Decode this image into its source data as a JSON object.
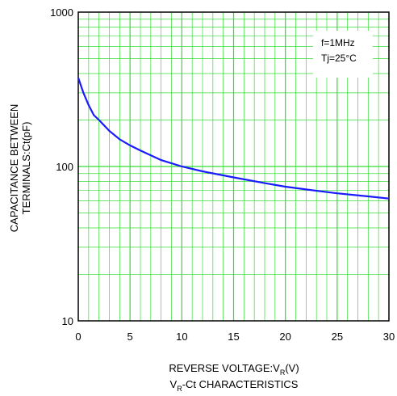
{
  "chart_data": {
    "type": "line",
    "title": "",
    "caption_prefix": "V",
    "caption_sub": "R",
    "caption_suffix": "-Ct CHARACTERISTICS",
    "xlabel_prefix": "REVERSE VOLTAGE:V",
    "xlabel_sub": "R",
    "xlabel_suffix": "(V)",
    "ylabel_line1": "CAPACITANCE BETWEEN",
    "ylabel_line2": "TERMINALS:Ct(pF)",
    "x_scale": "linear",
    "y_scale": "log",
    "xlim": [
      0,
      30
    ],
    "ylim": [
      10,
      1000
    ],
    "x_ticks": [
      "0",
      "5",
      "10",
      "15",
      "20",
      "25",
      "30"
    ],
    "y_ticks": [
      "10",
      "100",
      "1000"
    ],
    "grid": true,
    "annotation": [
      "f=1MHz",
      "Tj=25°C"
    ],
    "colors": {
      "curve": "#1a1aff",
      "grid": "#33dd33",
      "axes": "#000000"
    },
    "series": [
      {
        "x": [
          0,
          0.5,
          1,
          1.5,
          2,
          3,
          4,
          5,
          6,
          8,
          10,
          12,
          15,
          18,
          20,
          22,
          25,
          28,
          30
        ],
        "y": [
          375,
          300,
          250,
          215,
          200,
          170,
          150,
          137,
          127,
          110,
          100,
          93,
          85,
          78,
          74,
          71,
          67,
          64,
          62
        ]
      }
    ]
  }
}
